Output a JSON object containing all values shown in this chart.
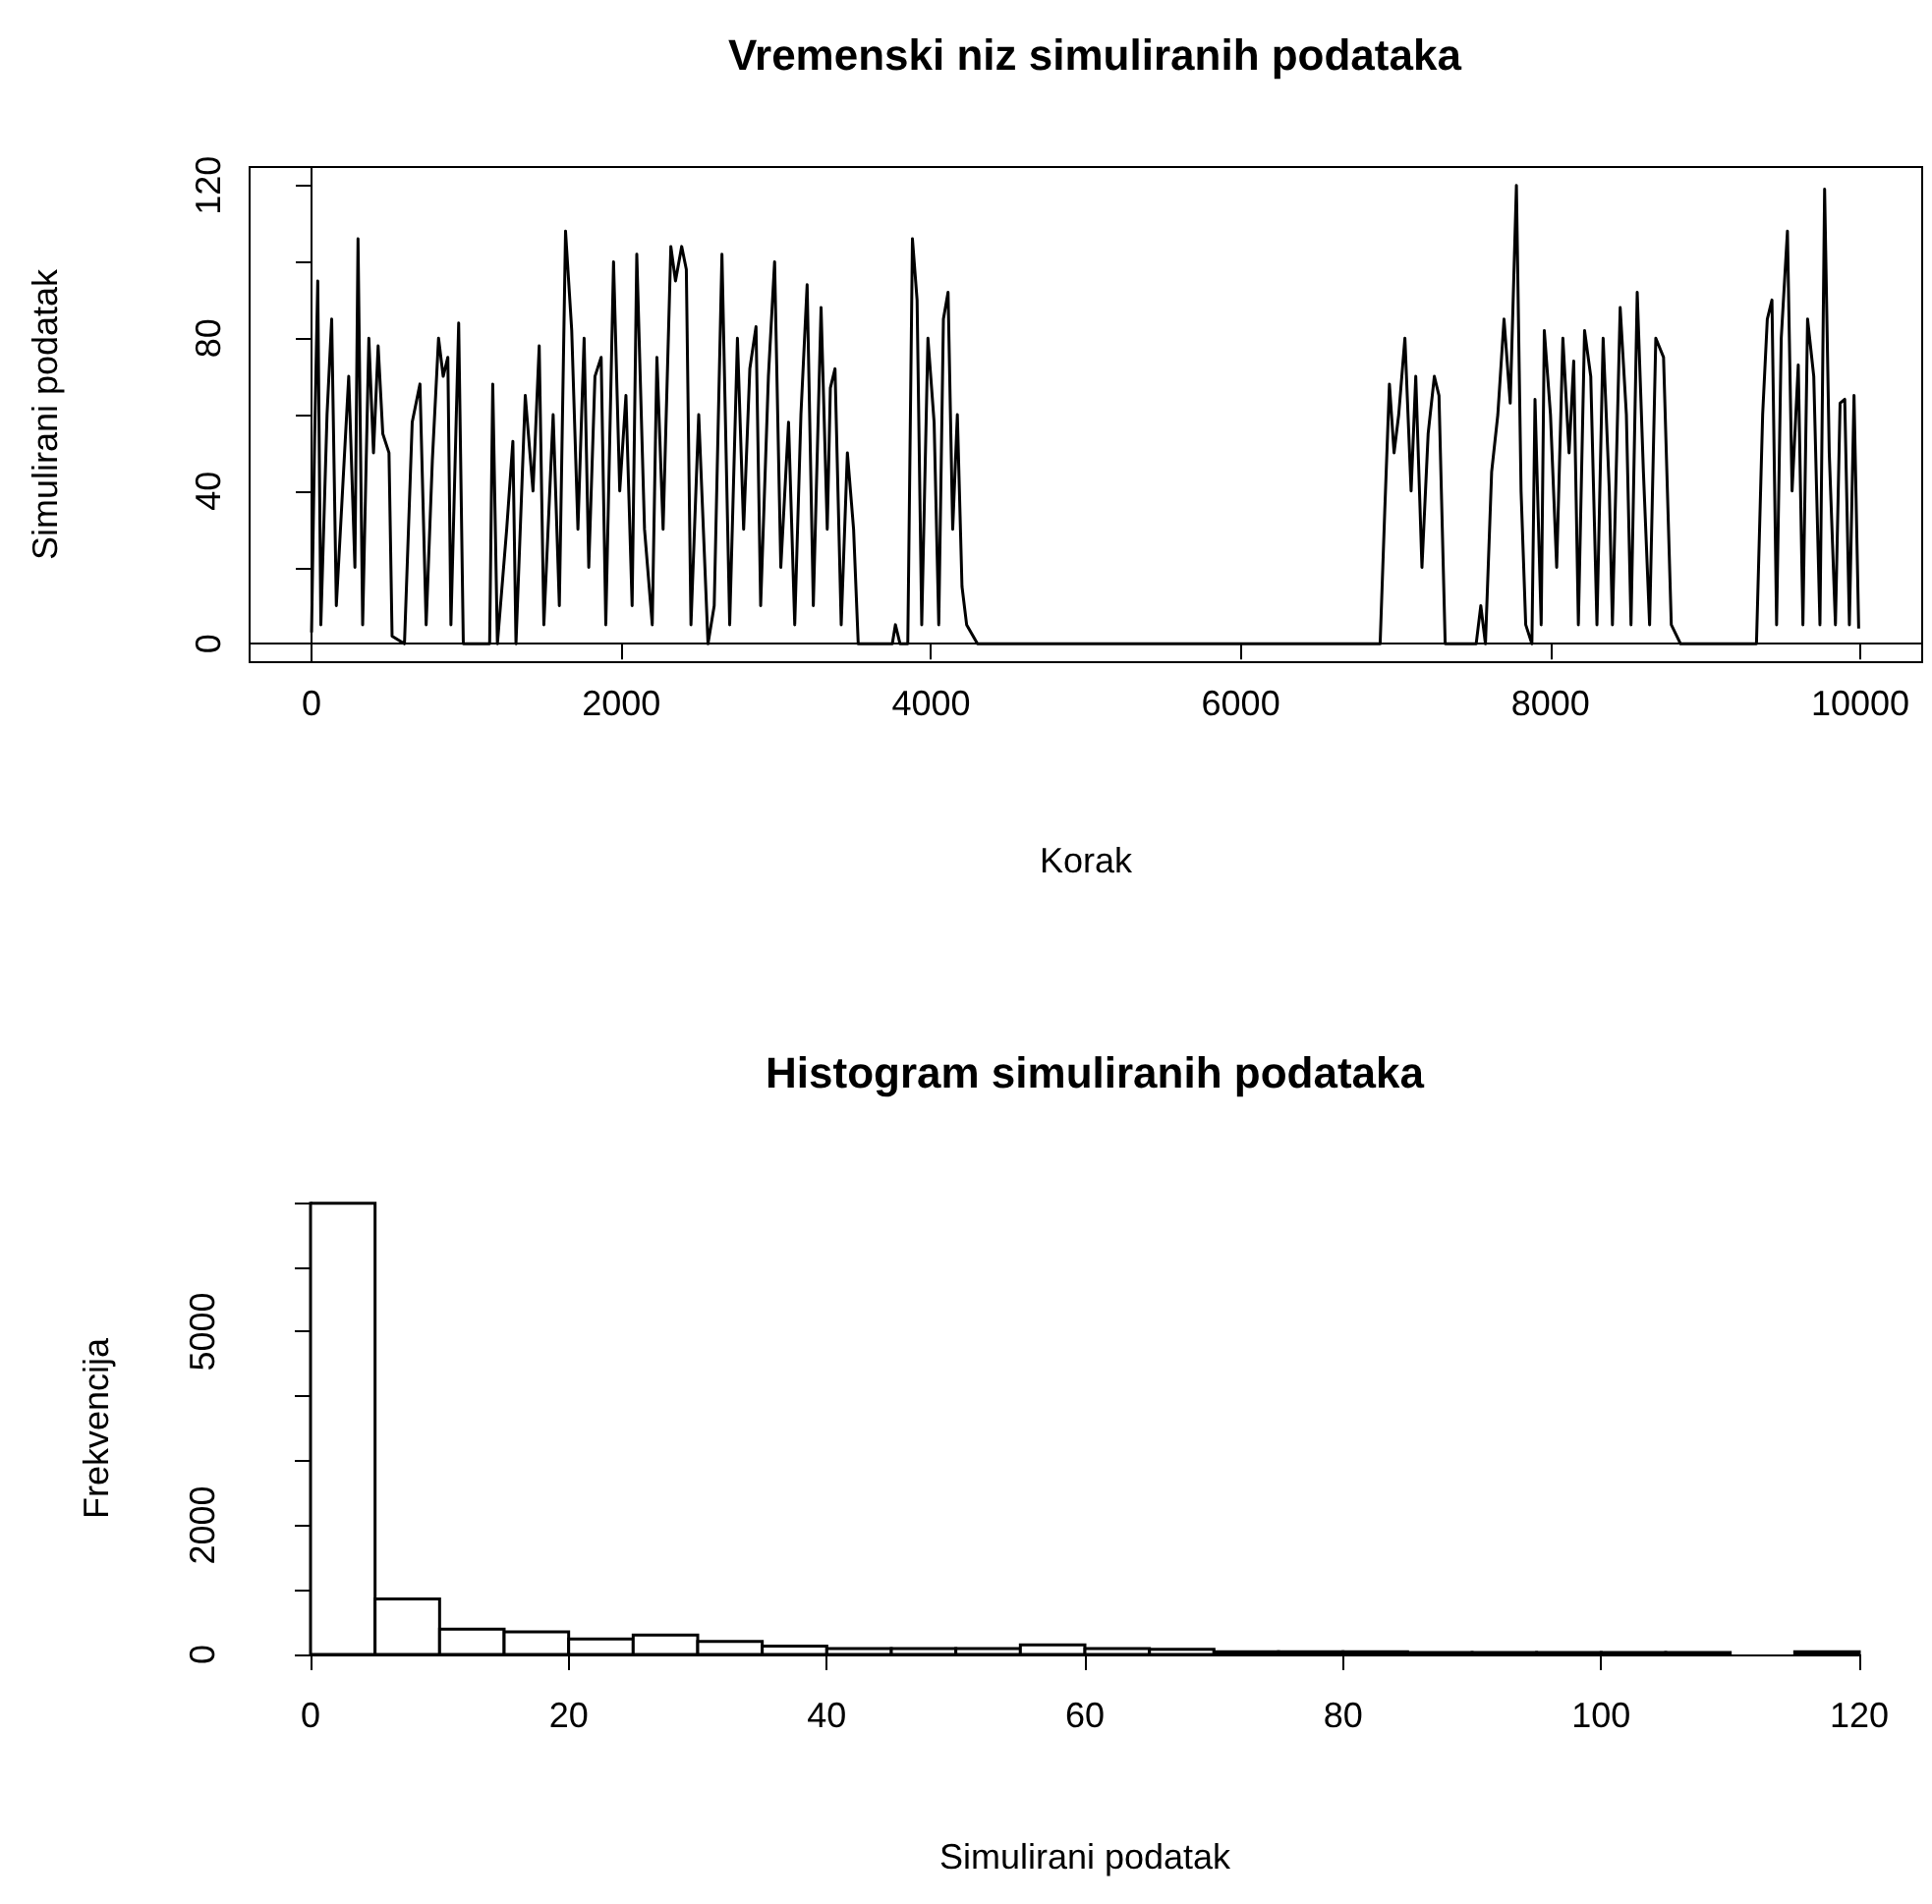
{
  "chart_data": [
    {
      "type": "line",
      "title": "Vremenski niz simuliranih podataka",
      "xlabel": "Korak",
      "ylabel": "Simulirani podatak",
      "color": "#000000",
      "xlim": [
        -400,
        10400
      ],
      "ylim": [
        -4.8,
        124.8
      ],
      "xticks": [
        0,
        2000,
        4000,
        6000,
        8000,
        10000
      ],
      "yticks": [
        0,
        {
          "value": 20,
          "label": null
        },
        40,
        {
          "value": 60,
          "label": null
        },
        80,
        {
          "value": 100,
          "label": null
        },
        120
      ],
      "x": [
        0,
        20,
        40,
        60,
        100,
        130,
        160,
        200,
        240,
        280,
        300,
        330,
        370,
        400,
        430,
        460,
        500,
        520,
        600,
        650,
        700,
        740,
        780,
        820,
        850,
        880,
        900,
        950,
        980,
        1150,
        1170,
        1200,
        1260,
        1300,
        1320,
        1380,
        1430,
        1470,
        1500,
        1560,
        1600,
        1640,
        1680,
        1720,
        1760,
        1790,
        1830,
        1870,
        1900,
        1950,
        1990,
        2030,
        2070,
        2100,
        2150,
        2200,
        2230,
        2270,
        2320,
        2350,
        2390,
        2420,
        2450,
        2500,
        2560,
        2600,
        2650,
        2700,
        2750,
        2790,
        2830,
        2870,
        2900,
        2950,
        2990,
        3030,
        3080,
        3120,
        3160,
        3200,
        3240,
        3290,
        3330,
        3350,
        3380,
        3420,
        3460,
        3500,
        3530,
        3750,
        3770,
        3800,
        3850,
        3880,
        3910,
        3940,
        3980,
        4020,
        4050,
        4080,
        4110,
        4140,
        4170,
        4200,
        4230,
        4300,
        6900,
        6930,
        6960,
        6990,
        7020,
        7060,
        7100,
        7130,
        7170,
        7210,
        7250,
        7280,
        7320,
        7520,
        7550,
        7580,
        7620,
        7660,
        7700,
        7740,
        7780,
        7810,
        7840,
        7880,
        7900,
        7940,
        7960,
        8000,
        8040,
        8080,
        8120,
        8150,
        8180,
        8220,
        8260,
        8300,
        8340,
        8380,
        8400,
        8450,
        8490,
        8520,
        8560,
        8600,
        8640,
        8680,
        8730,
        8780,
        8840,
        9330,
        9370,
        9400,
        9430,
        9460,
        9490,
        9530,
        9560,
        9600,
        9630,
        9660,
        9700,
        9740,
        9770,
        9800,
        9840,
        9870,
        9900,
        9930,
        9960,
        9990
      ],
      "values": [
        3,
        54,
        95,
        5,
        60,
        85,
        10,
        40,
        70,
        20,
        106,
        5,
        80,
        50,
        78,
        55,
        50,
        2,
        0,
        58,
        68,
        5,
        48,
        80,
        70,
        75,
        5,
        84,
        0,
        0,
        68,
        0,
        30,
        53,
        0,
        65,
        40,
        78,
        5,
        60,
        10,
        108,
        82,
        30,
        80,
        20,
        70,
        75,
        5,
        100,
        40,
        65,
        10,
        102,
        30,
        5,
        75,
        30,
        104,
        95,
        104,
        98,
        5,
        60,
        0,
        10,
        102,
        5,
        80,
        30,
        72,
        83,
        10,
        70,
        100,
        20,
        58,
        5,
        60,
        94,
        10,
        88,
        30,
        67,
        72,
        5,
        50,
        30,
        0,
        0,
        5,
        0,
        0,
        106,
        90,
        5,
        80,
        58,
        5,
        85,
        92,
        30,
        60,
        15,
        5,
        0,
        0,
        35,
        68,
        50,
        60,
        80,
        40,
        70,
        20,
        55,
        70,
        65,
        0,
        0,
        10,
        0,
        45,
        60,
        85,
        63,
        120,
        40,
        5,
        0,
        64,
        5,
        82,
        60,
        20,
        80,
        50,
        74,
        5,
        82,
        70,
        5,
        80,
        40,
        5,
        88,
        60,
        5,
        92,
        45,
        5,
        80,
        75,
        5,
        0,
        0,
        60,
        85,
        90,
        5,
        80,
        108,
        40,
        73,
        5,
        85,
        70,
        5,
        119,
        50,
        5,
        63,
        64,
        5,
        65,
        4
      ]
    },
    {
      "type": "histogram",
      "title": "Histogram simuliranih podataka",
      "xlabel": "Simulirani podatak",
      "ylabel": "Frekvencija",
      "color": "#ffffff",
      "xlim": [
        0,
        120
      ],
      "ylim": [
        0,
        7000
      ],
      "xticks": [
        0,
        20,
        40,
        60,
        80,
        100,
        120
      ],
      "yticks": [
        0,
        {
          "value": 1000,
          "label": null
        },
        2000,
        {
          "value": 3000,
          "label": null
        },
        {
          "value": 4000,
          "label": null
        },
        5000,
        {
          "value": 6000,
          "label": null
        },
        {
          "value": 7000,
          "label": null
        }
      ],
      "bins": [
        0,
        5,
        10,
        15,
        20,
        25,
        30,
        35,
        40,
        45,
        50,
        55,
        60,
        65,
        70,
        75,
        80,
        85,
        90,
        95,
        100,
        105,
        110,
        115,
        120
      ],
      "values": [
        6990,
        860,
        390,
        350,
        240,
        300,
        200,
        130,
        90,
        90,
        90,
        150,
        90,
        80,
        40,
        40,
        40,
        30,
        30,
        30,
        30,
        30,
        0,
        40
      ]
    }
  ]
}
